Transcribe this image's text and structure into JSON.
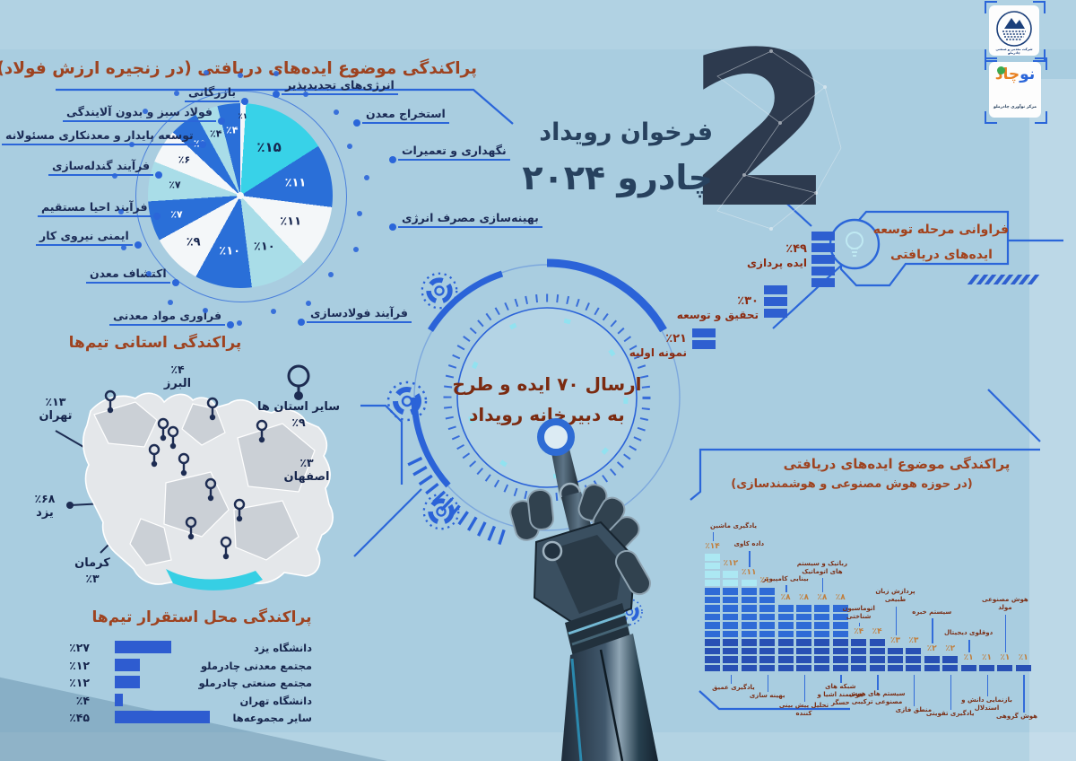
{
  "header": {
    "big_number": "2",
    "title_line1": "فرخوان رویداد",
    "title_line2": "چادرو ۲۰۲۴"
  },
  "logos": {
    "company_name": "شرکت معدنی و صنعتی چادرملو",
    "innovation_name_part1": "نو",
    "innovation_name_part2": "چاد",
    "innovation_caption": "مرکز نوآوری چادرملو",
    "accent_green": "#3aa94f",
    "accent_orange": "#e88122",
    "accent_blue": "#2b66d9"
  },
  "hud": {
    "line1": "ارسال ۷۰ ایده و طرح",
    "line2": "به دبیرخانه رویداد"
  },
  "sections": {
    "pie_title": "پراکندگی موضوع ایده‌های دریافتی (در زنجیره ارزش فولاد)",
    "map_title": "پراکندگی استانی تیم‌ها",
    "location_title": "پراکندگی محل استقرار تیم‌ها",
    "dev_title_line1": "فراوانی مرحله توسعه",
    "dev_title_line2": "ایده‌های دریافتی",
    "ai_title_line1": "پراکندگی موضوع ایده‌های دریافتی",
    "ai_title_line2": "(در حوزه هوش مصنوعی و هوشمندسازی)"
  },
  "colors": {
    "background": "#a9cde0",
    "line_blue": "#2b66d9",
    "bar_blue": "#2e5cd0",
    "title_brown": "#9e4320",
    "navy": "#16254c",
    "big_number_navy": "#2d3a4e",
    "hud_text": "#7b2a10",
    "ai_pct_orange": "#c07f3e",
    "ai_label_maroon": "#7b2f16"
  },
  "chart_data": [
    {
      "id": "steel_ideas_pie",
      "type": "pie",
      "title": "پراکندگی موضوع ایده‌های دریافتی (در زنجیره ارزش فولاد)",
      "slices": [
        {
          "label": "انرژی‌های تجدیدپذیر",
          "value": 1,
          "color": "#f4f7f9"
        },
        {
          "label": "استخراج معدن",
          "value": 15,
          "color": "#38d2e8"
        },
        {
          "label": "نگهداری و تعمیرات",
          "value": 11,
          "color": "#2a6fd8"
        },
        {
          "label": "بهینه‌سازی مصرف انرژی",
          "value": 11,
          "color": "#f4f7f9"
        },
        {
          "label": "فرآیند فولادسازی",
          "value": 10,
          "color": "#a9dde8"
        },
        {
          "label": "فرآوری مواد معدنی",
          "value": 10,
          "color": "#2a6fd8"
        },
        {
          "label": "اکتشاف معدن",
          "value": 9,
          "color": "#f4f7f9"
        },
        {
          "label": "ایمنی نیروی کار",
          "value": 7,
          "color": "#2a6fd8"
        },
        {
          "label": "فرآیند احیا مستقیم",
          "value": 7,
          "color": "#a9dde8"
        },
        {
          "label": "فرآیند گندله‌سازی",
          "value": 6,
          "color": "#f4f7f9"
        },
        {
          "label": "توسعه پایدار و معدنکاری مسئولانه",
          "value": 5,
          "color": "#2a6fd8"
        },
        {
          "label": "فولاد سبز و بدون آلایندگی",
          "value": 4,
          "color": "#a9dde8"
        },
        {
          "label": "بازرگانی",
          "value": 4,
          "color": "#2a6fd8"
        }
      ]
    },
    {
      "id": "dev_stage_bars",
      "type": "bar",
      "title": "فراوانی مرحله توسعه ایده‌های دریافتی",
      "categories": [
        "ایده پردازی",
        "تحقیق و توسعه",
        "نمونه اولیه"
      ],
      "values": [
        49,
        30,
        21
      ]
    },
    {
      "id": "province_map",
      "type": "table",
      "title": "پراکندگی استانی تیم‌ها",
      "categories": [
        "تهران",
        "البرز",
        "سایر استان ها",
        "اصفهان",
        "یزد",
        "کرمان"
      ],
      "values": [
        13,
        4,
        9,
        3,
        68,
        3
      ]
    },
    {
      "id": "team_location_bars",
      "type": "bar",
      "title": "پراکندگی محل استقرار تیم‌ها",
      "categories": [
        "دانشگاه یزد",
        "مجتمع معدنی چادرملو",
        "مجتمع صنعتی چادرملو",
        "دانشگاه تهران",
        "سایر مجموعه‌ها"
      ],
      "values": [
        27,
        12,
        12,
        4,
        45
      ]
    },
    {
      "id": "ai_topics_bars",
      "type": "bar",
      "title": "پراکندگی موضوع ایده‌های دریافتی (در حوزه هوش مصنوعی و هوشمندسازی)",
      "categories": [
        "یادگیری ماشین",
        "یادگیری عمیق",
        "داده کاوی",
        "بهینه سازی",
        "بینایی کامپیوتر",
        "تحلیل پیش بینی کننده",
        "رباتیک و سیستم های اتوماتیک",
        "شبکه های هوشمند اشیا و حسگر",
        "اتوماسیون شناختی",
        "سیستم های هوش مصنوعی ترکیبی",
        "پردازش زبان طبیعی",
        "منطق فازی",
        "سیستم خبره",
        "یادگیری تقویتی",
        "دوقلوی دیجیتال",
        "بازنمایی دانش و استدلال",
        "هوش مصنوعی مولد",
        "هوش گروهی"
      ],
      "values": [
        14,
        12,
        11,
        10,
        8,
        8,
        8,
        8,
        4,
        4,
        3,
        3,
        2,
        2,
        1,
        1,
        1,
        1
      ]
    }
  ]
}
